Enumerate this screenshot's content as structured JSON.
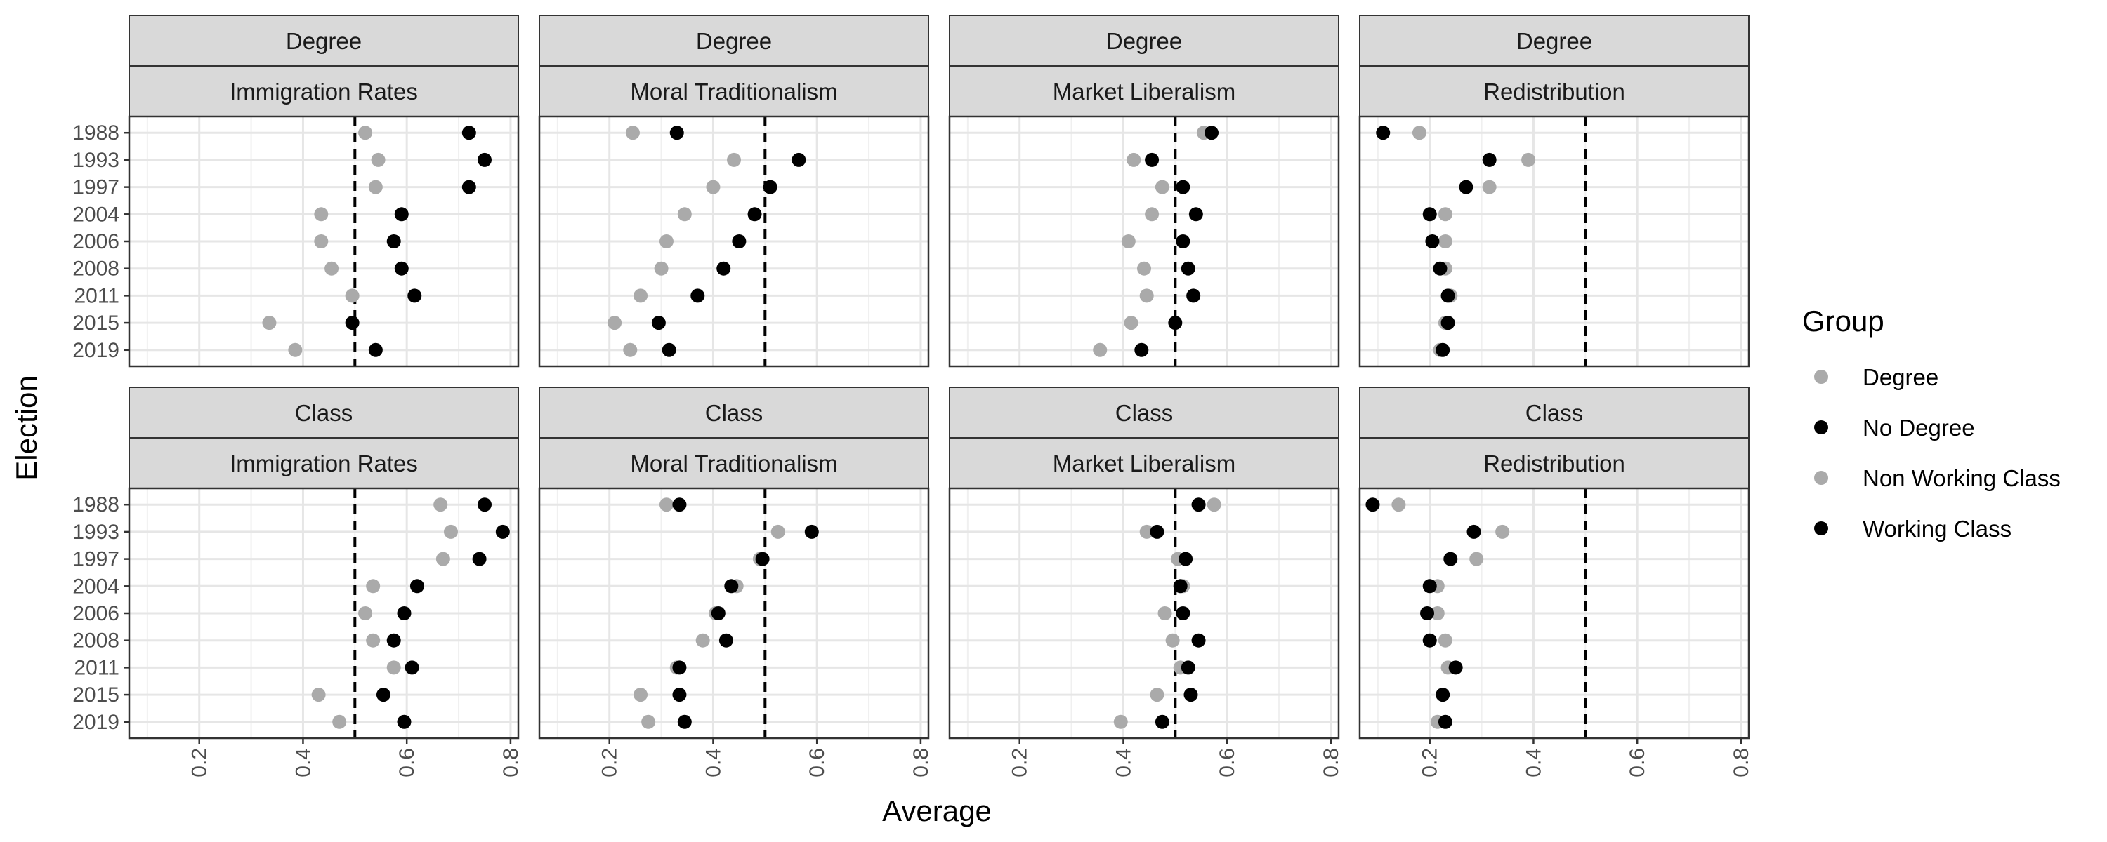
{
  "chart_data": {
    "type": "scatter",
    "xlabel": "Average",
    "ylabel": "Election",
    "x_ticks": [
      "0.2",
      "0.4",
      "0.6",
      "0.8"
    ],
    "x_tick_values": [
      0.2,
      0.4,
      0.6,
      0.8
    ],
    "xlim": [
      0.065,
      0.815
    ],
    "elections": [
      "1988",
      "1993",
      "1997",
      "2004",
      "2006",
      "2008",
      "2011",
      "2015",
      "2019"
    ],
    "reference_line": 0.5,
    "grid": true,
    "legend": {
      "title": "Group",
      "position": "right",
      "entries": [
        {
          "label": "Degree",
          "color": "#aaaaaa"
        },
        {
          "label": "No Degree",
          "color": "#000000"
        },
        {
          "label": "Non Working Class",
          "color": "#aaaaaa"
        },
        {
          "label": "Working Class",
          "color": "#000000"
        }
      ]
    },
    "panels": [
      {
        "row": "Degree",
        "col": "Immigration Rates",
        "series": [
          {
            "group": "Degree",
            "values": [
              0.52,
              0.545,
              0.54,
              0.435,
              0.435,
              0.455,
              0.495,
              0.335,
              0.385
            ]
          },
          {
            "group": "No Degree",
            "values": [
              0.72,
              0.75,
              0.72,
              0.59,
              0.575,
              0.59,
              0.615,
              0.495,
              0.54
            ]
          }
        ]
      },
      {
        "row": "Degree",
        "col": "Moral Traditionalism",
        "series": [
          {
            "group": "Degree",
            "values": [
              0.245,
              0.44,
              0.4,
              0.345,
              0.31,
              0.3,
              0.26,
              0.21,
              0.24
            ]
          },
          {
            "group": "No Degree",
            "values": [
              0.33,
              0.565,
              0.51,
              0.48,
              0.45,
              0.42,
              0.37,
              0.295,
              0.315
            ]
          }
        ]
      },
      {
        "row": "Degree",
        "col": "Market Liberalism",
        "series": [
          {
            "group": "Degree",
            "values": [
              0.555,
              0.42,
              0.475,
              0.455,
              0.41,
              0.44,
              0.445,
              0.415,
              0.355
            ]
          },
          {
            "group": "No Degree",
            "values": [
              0.57,
              0.455,
              0.515,
              0.54,
              0.515,
              0.525,
              0.535,
              0.5,
              0.435
            ]
          }
        ]
      },
      {
        "row": "Degree",
        "col": "Redistribution",
        "series": [
          {
            "group": "Degree",
            "values": [
              0.18,
              0.39,
              0.315,
              0.23,
              0.23,
              0.23,
              0.24,
              0.23,
              0.22
            ]
          },
          {
            "group": "No Degree",
            "values": [
              0.11,
              0.315,
              0.27,
              0.2,
              0.205,
              0.22,
              0.235,
              0.235,
              0.225
            ]
          }
        ]
      },
      {
        "row": "Class",
        "col": "Immigration Rates",
        "series": [
          {
            "group": "Non Working Class",
            "values": [
              0.665,
              0.685,
              0.67,
              0.535,
              0.52,
              0.535,
              0.575,
              0.43,
              0.47
            ]
          },
          {
            "group": "Working Class",
            "values": [
              0.75,
              0.785,
              0.74,
              0.62,
              0.595,
              0.575,
              0.61,
              0.555,
              0.595
            ]
          }
        ]
      },
      {
        "row": "Class",
        "col": "Moral Traditionalism",
        "series": [
          {
            "group": "Non Working Class",
            "values": [
              0.31,
              0.525,
              0.49,
              0.445,
              0.405,
              0.38,
              0.33,
              0.26,
              0.275
            ]
          },
          {
            "group": "Working Class",
            "values": [
              0.335,
              0.59,
              0.495,
              0.435,
              0.41,
              0.425,
              0.335,
              0.335,
              0.345
            ]
          }
        ]
      },
      {
        "row": "Class",
        "col": "Market Liberalism",
        "series": [
          {
            "group": "Non Working Class",
            "values": [
              0.575,
              0.445,
              0.505,
              0.515,
              0.48,
              0.495,
              0.51,
              0.465,
              0.395
            ]
          },
          {
            "group": "Working Class",
            "values": [
              0.545,
              0.465,
              0.52,
              0.51,
              0.515,
              0.545,
              0.525,
              0.53,
              0.475
            ]
          }
        ]
      },
      {
        "row": "Class",
        "col": "Redistribution",
        "series": [
          {
            "group": "Non Working Class",
            "values": [
              0.14,
              0.34,
              0.29,
              0.215,
              0.215,
              0.23,
              0.235,
              0.225,
              0.215
            ]
          },
          {
            "group": "Working Class",
            "values": [
              0.09,
              0.285,
              0.24,
              0.2,
              0.195,
              0.2,
              0.25,
              0.225,
              0.23
            ]
          }
        ]
      }
    ]
  }
}
